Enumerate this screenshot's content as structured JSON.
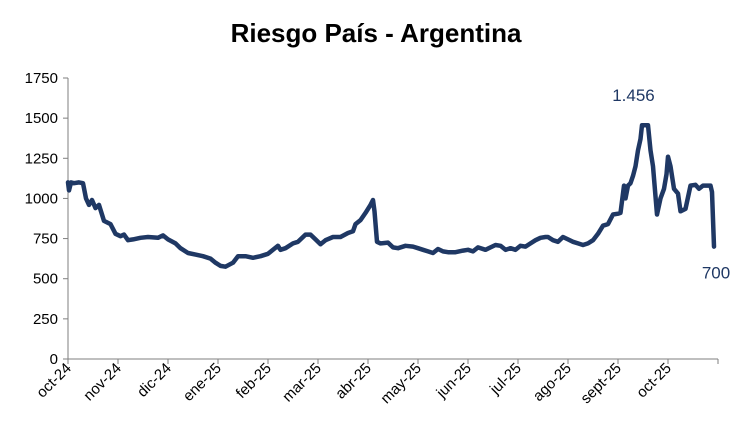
{
  "chart_data": {
    "type": "line",
    "title": "Riesgo País - Argentina",
    "xlabel": "",
    "ylabel": "",
    "ylim": [
      0,
      1750
    ],
    "yticks": [
      0,
      250,
      500,
      750,
      1000,
      1250,
      1500,
      1750
    ],
    "x_categories": [
      "oct-24",
      "nov-24",
      "dic-24",
      "ene-25",
      "feb-25",
      "mar-25",
      "abr-25",
      "may-25",
      "jun-25",
      "jul-25",
      "ago-25",
      "sept-25",
      "oct-25"
    ],
    "grid": false,
    "legend": "none",
    "line_color": "#1f3864",
    "series": [
      {
        "values": [
          [
            0.0,
            1100
          ],
          [
            0.02,
            1050
          ],
          [
            0.06,
            1100
          ],
          [
            0.12,
            1095
          ],
          [
            0.22,
            1100
          ],
          [
            0.3,
            1095
          ],
          [
            0.36,
            1000
          ],
          [
            0.42,
            960
          ],
          [
            0.48,
            990
          ],
          [
            0.55,
            940
          ],
          [
            0.62,
            960
          ],
          [
            0.72,
            860
          ],
          [
            0.85,
            840
          ],
          [
            0.95,
            780
          ],
          [
            1.05,
            765
          ],
          [
            1.12,
            775
          ],
          [
            1.2,
            740
          ],
          [
            1.3,
            745
          ],
          [
            1.45,
            755
          ],
          [
            1.6,
            760
          ],
          [
            1.8,
            755
          ],
          [
            1.9,
            770
          ],
          [
            2.0,
            745
          ],
          [
            2.15,
            720
          ],
          [
            2.25,
            690
          ],
          [
            2.4,
            660
          ],
          [
            2.55,
            650
          ],
          [
            2.7,
            640
          ],
          [
            2.85,
            625
          ],
          [
            2.95,
            600
          ],
          [
            3.05,
            580
          ],
          [
            3.15,
            575
          ],
          [
            3.3,
            600
          ],
          [
            3.4,
            640
          ],
          [
            3.55,
            640
          ],
          [
            3.7,
            630
          ],
          [
            3.85,
            640
          ],
          [
            4.0,
            655
          ],
          [
            4.1,
            680
          ],
          [
            4.2,
            705
          ],
          [
            4.25,
            680
          ],
          [
            4.35,
            690
          ],
          [
            4.5,
            720
          ],
          [
            4.6,
            730
          ],
          [
            4.75,
            775
          ],
          [
            4.85,
            775
          ],
          [
            4.95,
            745
          ],
          [
            5.05,
            715
          ],
          [
            5.15,
            740
          ],
          [
            5.3,
            760
          ],
          [
            5.45,
            760
          ],
          [
            5.6,
            785
          ],
          [
            5.7,
            795
          ],
          [
            5.75,
            840
          ],
          [
            5.85,
            865
          ],
          [
            5.95,
            910
          ],
          [
            6.05,
            960
          ],
          [
            6.1,
            990
          ],
          [
            6.13,
            920
          ],
          [
            6.18,
            730
          ],
          [
            6.25,
            720
          ],
          [
            6.4,
            725
          ],
          [
            6.5,
            695
          ],
          [
            6.6,
            690
          ],
          [
            6.75,
            705
          ],
          [
            6.9,
            700
          ],
          [
            7.0,
            690
          ],
          [
            7.1,
            680
          ],
          [
            7.2,
            670
          ],
          [
            7.3,
            660
          ],
          [
            7.4,
            685
          ],
          [
            7.5,
            670
          ],
          [
            7.6,
            665
          ],
          [
            7.75,
            665
          ],
          [
            7.9,
            675
          ],
          [
            8.0,
            680
          ],
          [
            8.1,
            670
          ],
          [
            8.2,
            695
          ],
          [
            8.35,
            680
          ],
          [
            8.45,
            695
          ],
          [
            8.55,
            710
          ],
          [
            8.65,
            705
          ],
          [
            8.75,
            680
          ],
          [
            8.85,
            690
          ],
          [
            8.95,
            680
          ],
          [
            9.05,
            705
          ],
          [
            9.15,
            700
          ],
          [
            9.25,
            720
          ],
          [
            9.35,
            740
          ],
          [
            9.45,
            755
          ],
          [
            9.55,
            760
          ],
          [
            9.6,
            760
          ],
          [
            9.7,
            740
          ],
          [
            9.8,
            730
          ],
          [
            9.9,
            760
          ],
          [
            10.0,
            745
          ],
          [
            10.1,
            730
          ],
          [
            10.2,
            720
          ],
          [
            10.3,
            710
          ],
          [
            10.4,
            720
          ],
          [
            10.5,
            740
          ],
          [
            10.6,
            780
          ],
          [
            10.7,
            830
          ],
          [
            10.8,
            840
          ],
          [
            10.9,
            900
          ],
          [
            11.0,
            905
          ],
          [
            11.05,
            910
          ],
          [
            11.12,
            1080
          ],
          [
            11.15,
            1000
          ],
          [
            11.2,
            1080
          ],
          [
            11.25,
            1095
          ],
          [
            11.3,
            1140
          ],
          [
            11.35,
            1200
          ],
          [
            11.4,
            1300
          ],
          [
            11.45,
            1370
          ],
          [
            11.48,
            1456
          ],
          [
            11.6,
            1456
          ],
          [
            11.65,
            1300
          ],
          [
            11.7,
            1200
          ],
          [
            11.78,
            900
          ],
          [
            11.85,
            1000
          ],
          [
            11.92,
            1060
          ],
          [
            11.97,
            1150
          ],
          [
            12.0,
            1260
          ],
          [
            12.05,
            1200
          ],
          [
            12.12,
            1060
          ],
          [
            12.2,
            1030
          ],
          [
            12.25,
            920
          ],
          [
            12.35,
            935
          ],
          [
            12.45,
            1080
          ],
          [
            12.55,
            1085
          ],
          [
            12.62,
            1060
          ],
          [
            12.7,
            1080
          ],
          [
            12.8,
            1080
          ],
          [
            12.85,
            1080
          ],
          [
            12.88,
            1040
          ],
          [
            12.92,
            700
          ]
        ]
      }
    ],
    "annotations": [
      {
        "text": "1.456",
        "x": 11.55,
        "y": 1456
      },
      {
        "text": "700",
        "x": 12.92,
        "y": 700
      }
    ]
  }
}
